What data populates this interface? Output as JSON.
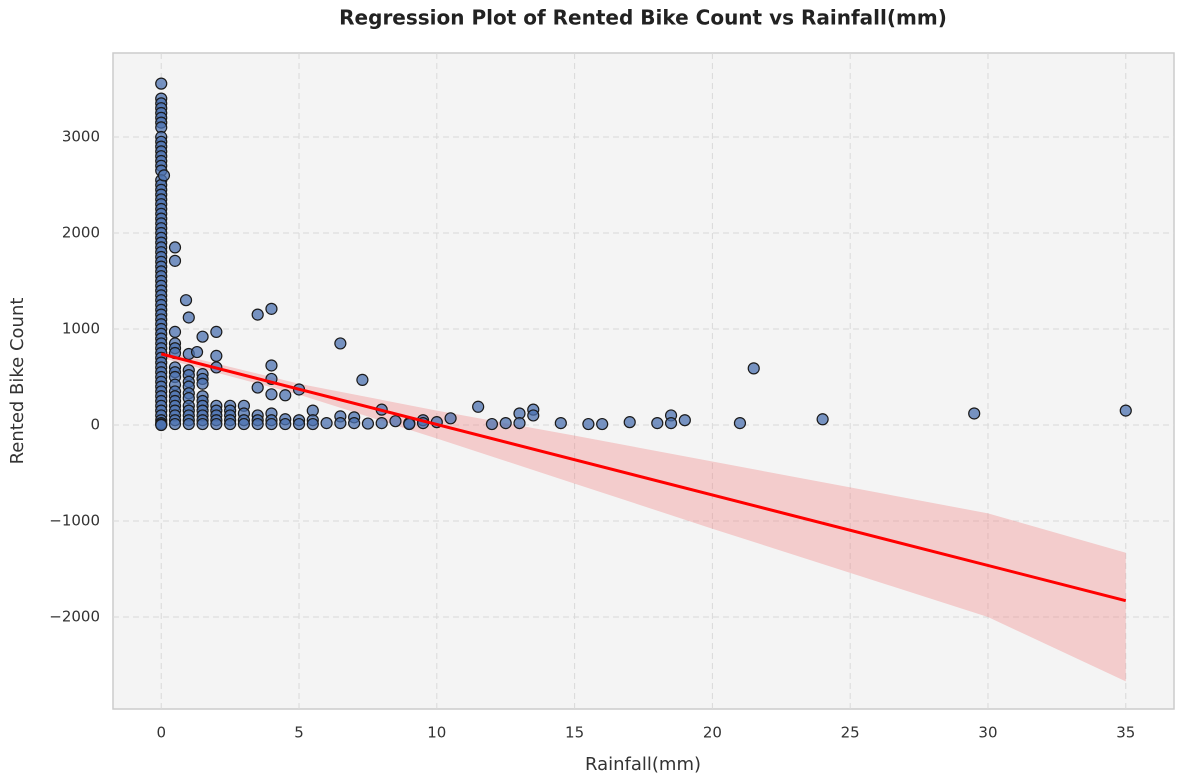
{
  "chart_data": {
    "type": "scatter",
    "title": "Regression Plot of Rented Bike Count vs Rainfall(mm)",
    "x_label": "Rainfall(mm)",
    "y_label": "Rented Bike Count",
    "xlim": [
      -1.75,
      36.75
    ],
    "ylim": [
      -2958,
      3875
    ],
    "xticks": [
      0,
      5,
      10,
      15,
      20,
      25,
      30,
      35
    ],
    "yticks": [
      {
        "value": -2000,
        "label": "−2000"
      },
      {
        "value": -1000,
        "label": "−1000"
      },
      0,
      1000,
      2000,
      3000
    ],
    "grid": true,
    "point_color": "#4c72b0",
    "edge_color": "#1a1a1a",
    "x": [
      0,
      0,
      0,
      0,
      0,
      0,
      0,
      0,
      0,
      0,
      0,
      0,
      0,
      0,
      0,
      0,
      0,
      0,
      0,
      0,
      0,
      0,
      0,
      0,
      0,
      0,
      0,
      0,
      0,
      0,
      0,
      0,
      0,
      0,
      0,
      0,
      0,
      0,
      0,
      0,
      0,
      0,
      0,
      0,
      0,
      0,
      0,
      0,
      0,
      0,
      0,
      0,
      0,
      0,
      0,
      0,
      0,
      0,
      0,
      0,
      0,
      0,
      0,
      0,
      0,
      0,
      0,
      0,
      0,
      0,
      0.1,
      0.5,
      0.5,
      0.5,
      0.5,
      0.5,
      0.5,
      0.5,
      0.5,
      0.5,
      0.5,
      0.5,
      0.5,
      0.5,
      0.5,
      0.5,
      0.5,
      0.5,
      0.5,
      0.9,
      1,
      1,
      1,
      1,
      1,
      1,
      1,
      1,
      1,
      1,
      1,
      1,
      1,
      1.3,
      1.5,
      1.5,
      1.5,
      1.5,
      1.5,
      1.5,
      1.5,
      1.5,
      1.5,
      1.5,
      1.5,
      2,
      2,
      2,
      2,
      2,
      2,
      2,
      2,
      2.5,
      2.5,
      2.5,
      2.5,
      2.5,
      3,
      3,
      3,
      3,
      3.5,
      3.5,
      3.5,
      3.5,
      3.5,
      4,
      4,
      4,
      4,
      4,
      4,
      4,
      4.5,
      4.5,
      4.5,
      5,
      5,
      5,
      5.5,
      5.5,
      5.5,
      6,
      6.5,
      6.5,
      6.5,
      7,
      7,
      7.3,
      7.5,
      8,
      8,
      8.5,
      9,
      9,
      9.5,
      9.5,
      10,
      10.5,
      11.5,
      12,
      12.5,
      13,
      13,
      13.5,
      13.5,
      14.5,
      15.5,
      16,
      17,
      18,
      18.5,
      18.5,
      19,
      21,
      21.5,
      24,
      29.5,
      35
    ],
    "values": [
      3556,
      3400,
      3350,
      3300,
      3250,
      3200,
      3150,
      3100,
      3000,
      2950,
      2900,
      2850,
      2800,
      2750,
      2700,
      2650,
      2550,
      2500,
      2450,
      2400,
      2350,
      2300,
      2250,
      2200,
      2150,
      2100,
      2050,
      2000,
      1950,
      1900,
      1850,
      1800,
      1750,
      1700,
      1650,
      1600,
      1550,
      1500,
      1450,
      1400,
      1350,
      1300,
      1250,
      1200,
      1150,
      1100,
      1050,
      1000,
      950,
      900,
      850,
      800,
      750,
      700,
      650,
      600,
      550,
      500,
      450,
      400,
      350,
      300,
      250,
      200,
      150,
      100,
      50,
      20,
      5,
      0,
      2600,
      1850,
      1710,
      970,
      850,
      800,
      750,
      600,
      550,
      500,
      420,
      350,
      300,
      250,
      200,
      150,
      100,
      50,
      10,
      1300,
      1120,
      740,
      570,
      520,
      450,
      400,
      330,
      280,
      200,
      150,
      100,
      50,
      10,
      760,
      920,
      530,
      480,
      430,
      300,
      250,
      200,
      150,
      100,
      50,
      10,
      970,
      720,
      600,
      200,
      150,
      100,
      50,
      10,
      200,
      150,
      100,
      50,
      10,
      200,
      120,
      50,
      10,
      1150,
      390,
      100,
      50,
      10,
      1210,
      620,
      480,
      320,
      120,
      50,
      10,
      310,
      60,
      10,
      370,
      50,
      10,
      150,
      50,
      10,
      20,
      850,
      90,
      20,
      80,
      20,
      470,
      15,
      160,
      20,
      40,
      20,
      10,
      50,
      20,
      30,
      70,
      190,
      10,
      20,
      120,
      20,
      160,
      100,
      20,
      10,
      10,
      30,
      20,
      100,
      20,
      50,
      20,
      590,
      60,
      120,
      150
    ],
    "regression": {
      "x": [
        0,
        35
      ],
      "values": [
        740,
        -1830
      ],
      "color": "#ff0000"
    },
    "ci_band": {
      "x": [
        0,
        5,
        10,
        15,
        20,
        25,
        30,
        35
      ],
      "upper": [
        780,
        430,
        150,
        -110,
        -380,
        -650,
        -920,
        -1330
      ],
      "lower": [
        700,
        316,
        -140,
        -610,
        -1080,
        -1540,
        -2000,
        -2670
      ],
      "color": "#f08080"
    }
  }
}
